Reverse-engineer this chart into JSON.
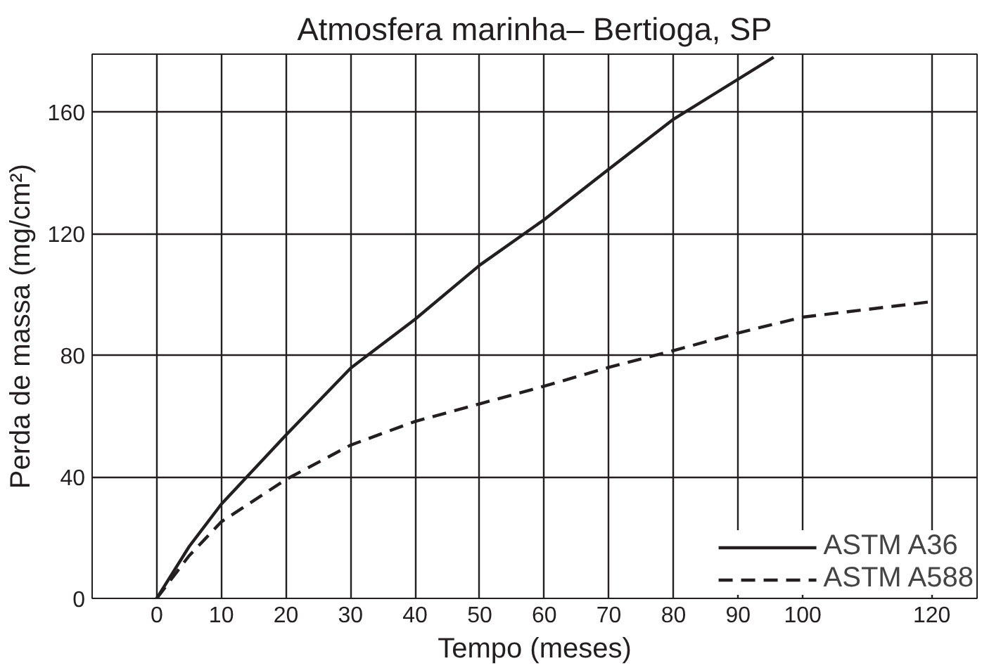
{
  "chart_data": {
    "type": "line",
    "title": "Atmosfera marinha– Bertioga, SP",
    "xlabel": "Tempo (meses)",
    "ylabel": "Perda de massa (mg/cm²)",
    "xlim": [
      -10,
      127
    ],
    "ylim": [
      0,
      179
    ],
    "xticks": [
      0,
      10,
      20,
      30,
      40,
      50,
      60,
      70,
      80,
      90,
      100,
      120
    ],
    "yticks": [
      0,
      40,
      80,
      120,
      160
    ],
    "grid": true,
    "legend": "bottom right",
    "series": [
      {
        "name": "ASTM A36",
        "color": "#231f20",
        "line_style": "solid",
        "x": [
          0,
          5,
          10,
          20,
          30,
          40,
          50,
          60,
          70,
          80,
          95.5
        ],
        "values": [
          0,
          17,
          31,
          53.7,
          75.7,
          91.8,
          109.6,
          124.6,
          141.2,
          157.6,
          178
        ]
      },
      {
        "name": "ASTM A588",
        "color": "#231f20",
        "line_style": "dashed",
        "x": [
          0,
          5,
          10,
          20,
          30,
          40,
          50,
          60,
          70,
          80,
          90,
          100,
          120
        ],
        "values": [
          0,
          14,
          25.2,
          39.1,
          50.4,
          58.2,
          64,
          69.8,
          76,
          81.5,
          87.3,
          92.5,
          97.6
        ]
      }
    ]
  }
}
